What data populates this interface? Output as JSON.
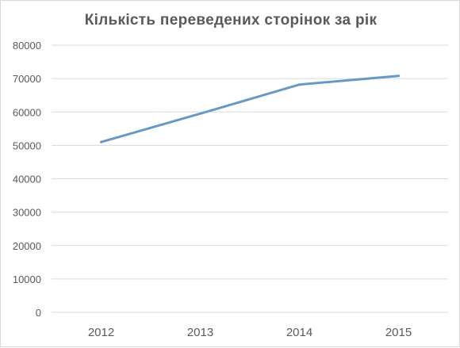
{
  "chart_data": {
    "type": "line",
    "title": "Кількість переведених сторінок за рік",
    "xlabel": "",
    "ylabel": "",
    "categories": [
      "2012",
      "2013",
      "2014",
      "2015"
    ],
    "series": [
      {
        "values": [
          51000,
          59500,
          68200,
          70800
        ],
        "color": "#6699C4"
      }
    ],
    "ylim": [
      0,
      80000
    ],
    "yticks": [
      0,
      10000,
      20000,
      30000,
      40000,
      50000,
      60000,
      70000,
      80000
    ],
    "ytick_labels": [
      "0",
      "10000",
      "20000",
      "30000",
      "40000",
      "50000",
      "60000",
      "70000",
      "80000"
    ],
    "grid": true,
    "grid_color": "#d9d9d9",
    "legend": "none"
  }
}
